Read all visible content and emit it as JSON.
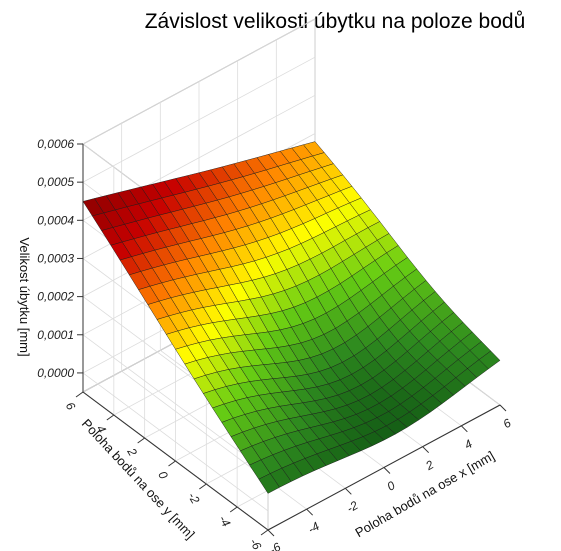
{
  "chart_data": {
    "type": "surface3d",
    "title": "Závislost velikosti úbytku na poloze bodů",
    "xlabel": "Poloha bodů na ose x [mm]",
    "ylabel": "Poloha bodů na ose y [mm]",
    "zlabel": "Velikost úbytku [mm]",
    "x_ticks": [
      "-6",
      "-4",
      "-2",
      "0",
      "2",
      "4",
      "6"
    ],
    "y_ticks": [
      "-6",
      "-4",
      "-2",
      "0",
      "2",
      "4",
      "6"
    ],
    "z_ticks": [
      "0,0000",
      "0,0001",
      "0,0002",
      "0,0003",
      "0,0004",
      "0,0005",
      "0,0006"
    ],
    "xlim": [
      -6,
      6
    ],
    "ylim": [
      -6,
      6
    ],
    "zlim": [
      -5e-05,
      0.0006
    ],
    "grid_resolution": 20,
    "corner_values": [
      {
        "x": -6,
        "y": 6,
        "z": 0.00045
      },
      {
        "x": 6,
        "y": 6,
        "z": 0.00028
      },
      {
        "x": -6,
        "y": -6,
        "z": 5e-05
      },
      {
        "x": 6,
        "y": -6,
        "z": 8e-05
      }
    ],
    "minimum": {
      "x": 1,
      "y": -2,
      "z": 0.0
    },
    "colormap": [
      "#0b4d12",
      "#2e8a1f",
      "#66cc14",
      "#ffff00",
      "#ff8000",
      "#c70000",
      "#8a0000"
    ]
  }
}
